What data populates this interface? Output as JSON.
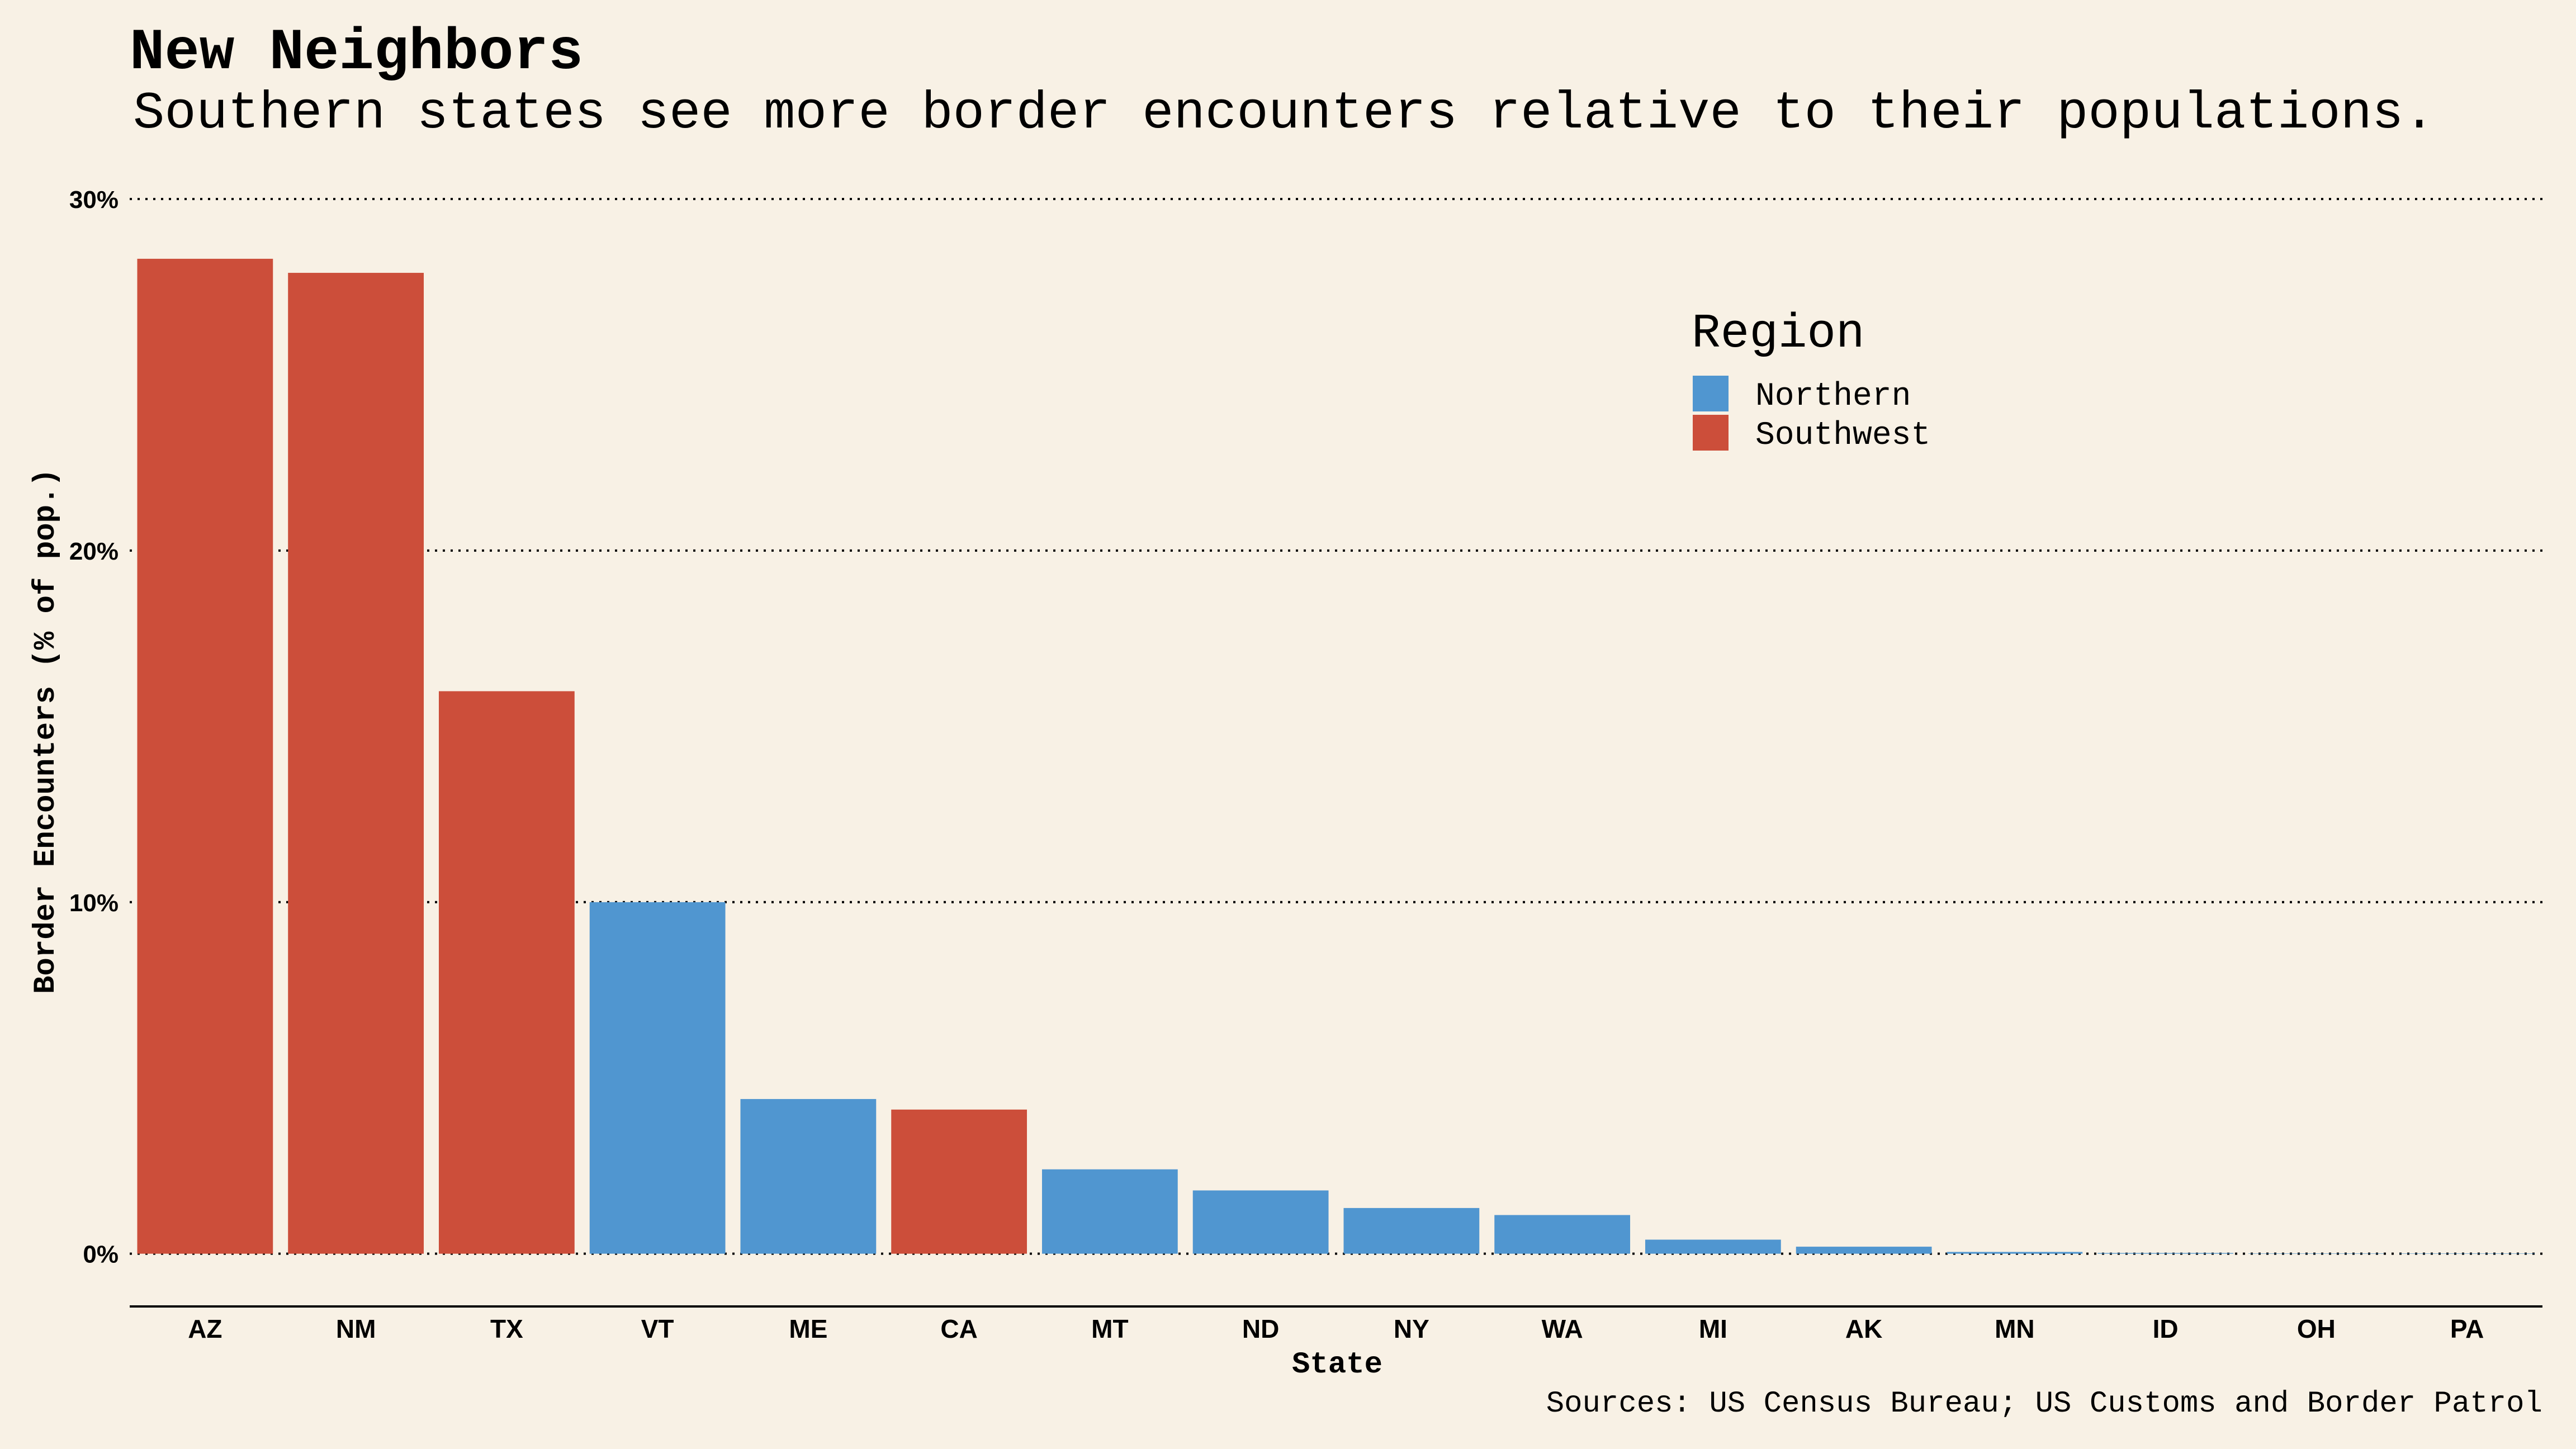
{
  "chart_data": {
    "type": "bar",
    "title": "New Neighbors",
    "subtitle": "Southern states see more border encounters relative to their populations.",
    "xlabel": "State",
    "ylabel": "Border Encounters (% of pop.)",
    "caption": "Sources: US Census Bureau; US Customs and Border Patrol",
    "categories": [
      "AZ",
      "NM",
      "TX",
      "VT",
      "ME",
      "CA",
      "MT",
      "ND",
      "NY",
      "WA",
      "MI",
      "AK",
      "MN",
      "ID",
      "OH",
      "PA"
    ],
    "values": [
      28.3,
      27.9,
      16.0,
      10.0,
      4.4,
      4.1,
      2.4,
      1.8,
      1.3,
      1.1,
      0.4,
      0.2,
      0.05,
      0.02,
      0.01,
      0.01
    ],
    "regions": [
      "Southwest",
      "Southwest",
      "Southwest",
      "Northern",
      "Northern",
      "Southwest",
      "Northern",
      "Northern",
      "Northern",
      "Northern",
      "Northern",
      "Northern",
      "Northern",
      "Northern",
      "Northern",
      "Northern"
    ],
    "ylim": [
      -1.5,
      30
    ],
    "yticks": [
      0,
      10,
      20,
      30
    ],
    "ytick_labels": [
      "0%",
      "10%",
      "20%",
      "30%"
    ],
    "grid": "horizontal-dotted",
    "legend": {
      "title": "Region",
      "placement": "top-right",
      "entries": [
        {
          "name": "Northern",
          "color": "#5096D0"
        },
        {
          "name": "Southwest",
          "color": "#CC4E3A"
        }
      ]
    },
    "colors": {
      "background": "#F8F1E5",
      "Northern": "#5096D0",
      "Southwest": "#CC4E3A"
    }
  }
}
